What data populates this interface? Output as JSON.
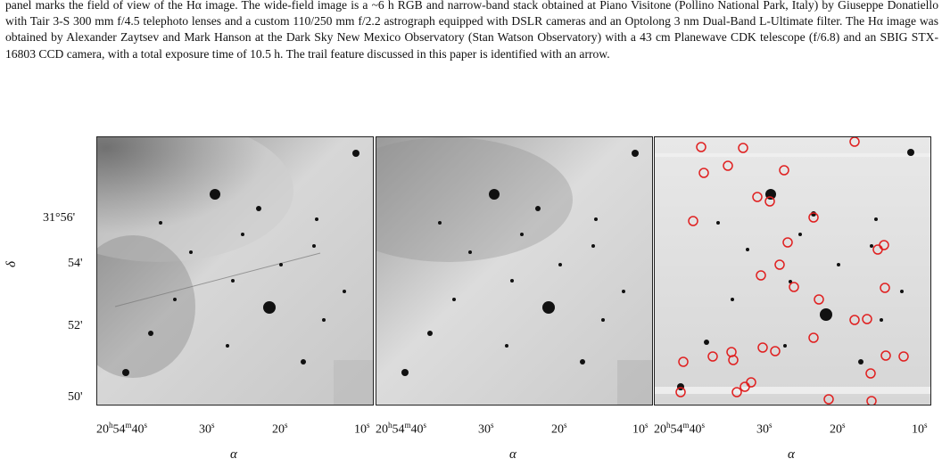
{
  "caption": {
    "text": "panel marks the field of view of the Hα image. The wide-field image is a ~6 h RGB and narrow-band stack obtained at Piano Visitone (Pollino National Park, Italy) by Giuseppe Donatiello with Tair 3-S 300 mm f/4.5 telephoto lenses and a custom 110/250 mm f/2.2 astrograph equipped with DSLR cameras and an Optolong 3 nm Dual-Band L-Ultimate filter. The Hα image was obtained by Alexander Zaytsev and Mark Hanson at the Dark Sky New Mexico Observatory (Stan Watson Observatory) with a 43 cm Planewave CDK telescope (f/6.8) and an SBIG STX-16803 CCD camera, with a total exposure time of 10.5 h. The trail feature discussed in this paper is identified with an arrow."
  },
  "figure": {
    "y_axis_label": "δ",
    "x_axis_label": "α",
    "y_ticks": [
      "31°56'",
      "54'",
      "52'",
      "50'"
    ],
    "x_ticks": [
      {
        "h": "20",
        "hu": "h",
        "m": "54",
        "mu": "m",
        "s": "40",
        "su": "s"
      },
      {
        "s": "30",
        "su": "s"
      },
      {
        "s": "20",
        "su": "s"
      },
      {
        "s": "10",
        "su": "s"
      }
    ],
    "panels": [
      "left-panel",
      "middle-panel",
      "right-panel"
    ]
  }
}
